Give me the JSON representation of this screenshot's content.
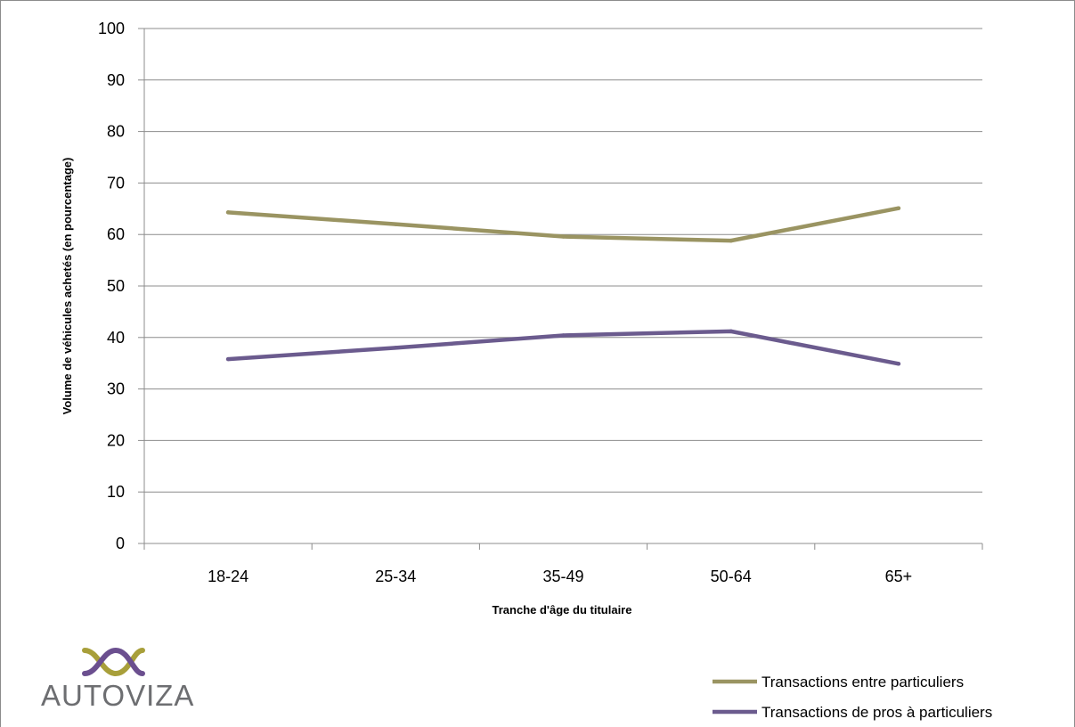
{
  "chart_data": {
    "type": "line",
    "categories": [
      "18-24",
      "25-34",
      "35-49",
      "50-64",
      "65+"
    ],
    "series": [
      {
        "name": "Transactions entre particuliers",
        "values": [
          64.3,
          62.0,
          59.6,
          58.8,
          65.1
        ],
        "color": "#9a9462"
      },
      {
        "name": "Transactions de pros à particuliers",
        "values": [
          35.8,
          38.0,
          40.4,
          41.2,
          34.9
        ],
        "color": "#6b5b8e"
      }
    ],
    "xlabel": "Tranche d'âge du titulaire",
    "ylabel": "Volume de véhicules achetés (en pourcentage)",
    "ylim": [
      0,
      100
    ],
    "yticks": [
      0,
      10,
      20,
      30,
      40,
      50,
      60,
      70,
      80,
      90,
      100
    ],
    "grid": true,
    "legend_position": "bottom-right"
  },
  "logo": {
    "text": "AUTOVIZA",
    "colors": {
      "olive": "#a89f3a",
      "purple": "#6b4f8f",
      "text": "#6d6e71"
    }
  }
}
